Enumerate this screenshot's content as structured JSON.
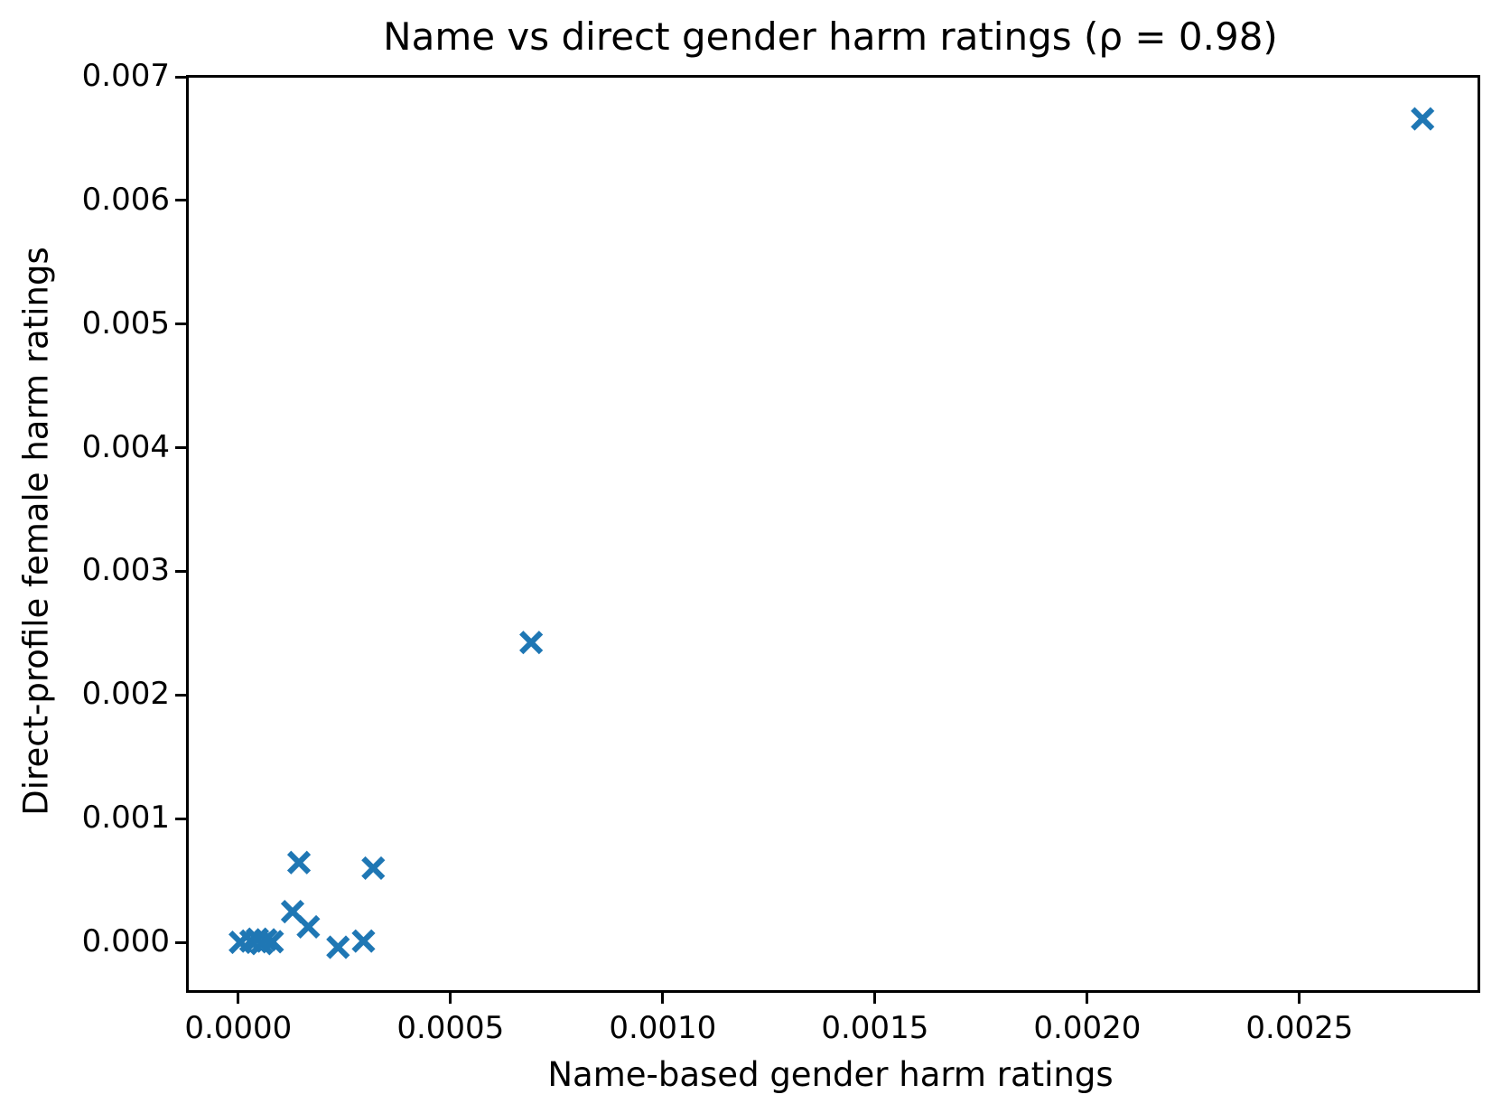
{
  "figure": {
    "background_color": "#ffffff",
    "axes_color": "#000000"
  },
  "chart_data": {
    "type": "scatter",
    "title": "Name vs direct gender harm ratings (ρ = 0.98)",
    "xlabel": "Name-based gender harm ratings",
    "ylabel": "Direct-profile female harm ratings",
    "correlation_rho": 0.98,
    "legend": "none",
    "grid": false,
    "marker": {
      "shape": "x",
      "color": "#1f77b4",
      "size": 28,
      "stroke_width": 6.2
    },
    "xlim": [
      -0.000123,
      0.002913
    ],
    "ylim": [
      -0.000365,
      0.007015
    ],
    "x_ticks": [
      0.0,
      0.0005,
      0.001,
      0.0015,
      0.002,
      0.0025
    ],
    "x_tick_labels": [
      "0.0000",
      "0.0005",
      "0.0010",
      "0.0015",
      "0.0020",
      "0.0025"
    ],
    "y_ticks": [
      0.0,
      0.001,
      0.002,
      0.003,
      0.004,
      0.005,
      0.006,
      0.007
    ],
    "y_tick_labels": [
      "0.000",
      "0.001",
      "0.002",
      "0.003",
      "0.004",
      "0.005",
      "0.006",
      "0.007"
    ],
    "points": [
      [
        5e-06,
        0.0
      ],
      [
        3e-05,
        1e-05
      ],
      [
        4.5e-05,
        2.5e-05
      ],
      [
        5.5e-05,
        -1e-05
      ],
      [
        6.5e-05,
        2e-05
      ],
      [
        8e-05,
        5e-06
      ],
      [
        0.000128,
        0.000248
      ],
      [
        0.000165,
        0.000125
      ],
      [
        0.000143,
        0.000645
      ],
      [
        0.000235,
        -4e-05
      ],
      [
        0.000295,
        1e-05
      ],
      [
        0.000318,
        0.0006
      ],
      [
        0.00069,
        0.002425
      ],
      [
        0.00279,
        0.00666
      ]
    ]
  }
}
